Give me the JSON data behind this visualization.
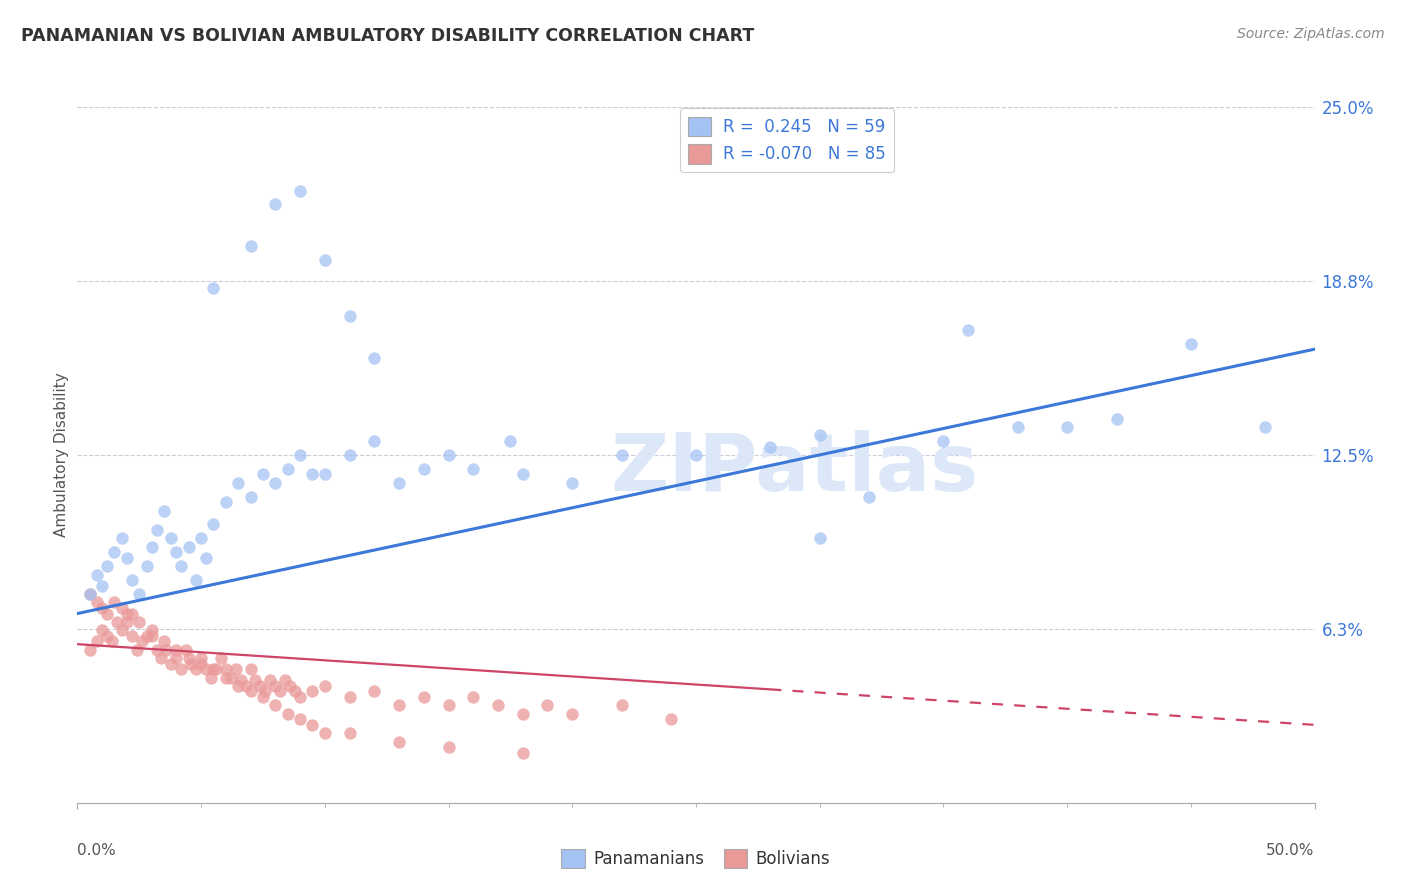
{
  "title": "PANAMANIAN VS BOLIVIAN AMBULATORY DISABILITY CORRELATION CHART",
  "source": "Source: ZipAtlas.com",
  "ylabel": "Ambulatory Disability",
  "xlim": [
    0.0,
    0.5
  ],
  "ylim": [
    0.0,
    0.25
  ],
  "yticks": [
    0.0,
    0.0625,
    0.125,
    0.1875,
    0.25
  ],
  "ytick_labels": [
    "",
    "6.3%",
    "12.5%",
    "18.8%",
    "25.0%"
  ],
  "watermark": "ZIPatlas",
  "blue_color": "#a4c2f4",
  "pink_color": "#ea9999",
  "trend_blue": "#3c78d8",
  "trend_pink": "#cc4466",
  "blue_trend_x0": 0.0,
  "blue_trend_y0": 0.068,
  "blue_trend_x1": 0.5,
  "blue_trend_y1": 0.163,
  "pink_trend_x0": 0.0,
  "pink_trend_y0": 0.057,
  "pink_trend_x1": 0.5,
  "pink_trend_y1": 0.028,
  "pan_x": [
    0.005,
    0.008,
    0.01,
    0.012,
    0.015,
    0.018,
    0.02,
    0.022,
    0.025,
    0.028,
    0.03,
    0.032,
    0.035,
    0.038,
    0.04,
    0.042,
    0.045,
    0.048,
    0.05,
    0.052,
    0.055,
    0.06,
    0.065,
    0.07,
    0.075,
    0.08,
    0.085,
    0.09,
    0.095,
    0.1,
    0.11,
    0.12,
    0.13,
    0.14,
    0.15,
    0.16,
    0.175,
    0.18,
    0.2,
    0.22,
    0.25,
    0.28,
    0.3,
    0.35,
    0.38,
    0.4,
    0.42,
    0.45,
    0.48,
    0.3,
    0.32,
    0.36,
    0.055,
    0.07,
    0.08,
    0.09,
    0.1,
    0.11,
    0.12
  ],
  "pan_y": [
    0.075,
    0.082,
    0.078,
    0.085,
    0.09,
    0.095,
    0.088,
    0.08,
    0.075,
    0.085,
    0.092,
    0.098,
    0.105,
    0.095,
    0.09,
    0.085,
    0.092,
    0.08,
    0.095,
    0.088,
    0.1,
    0.108,
    0.115,
    0.11,
    0.118,
    0.115,
    0.12,
    0.125,
    0.118,
    0.118,
    0.125,
    0.13,
    0.115,
    0.12,
    0.125,
    0.12,
    0.13,
    0.118,
    0.115,
    0.125,
    0.125,
    0.128,
    0.132,
    0.13,
    0.135,
    0.135,
    0.138,
    0.165,
    0.135,
    0.095,
    0.11,
    0.17,
    0.185,
    0.2,
    0.215,
    0.22,
    0.195,
    0.175,
    0.16
  ],
  "bol_x": [
    0.005,
    0.008,
    0.01,
    0.012,
    0.014,
    0.016,
    0.018,
    0.02,
    0.022,
    0.024,
    0.026,
    0.028,
    0.03,
    0.032,
    0.034,
    0.036,
    0.038,
    0.04,
    0.042,
    0.044,
    0.046,
    0.048,
    0.05,
    0.052,
    0.054,
    0.056,
    0.058,
    0.06,
    0.062,
    0.064,
    0.066,
    0.068,
    0.07,
    0.072,
    0.074,
    0.076,
    0.078,
    0.08,
    0.082,
    0.084,
    0.086,
    0.088,
    0.09,
    0.095,
    0.1,
    0.11,
    0.12,
    0.13,
    0.14,
    0.15,
    0.16,
    0.17,
    0.18,
    0.19,
    0.2,
    0.22,
    0.24,
    0.005,
    0.008,
    0.01,
    0.012,
    0.015,
    0.018,
    0.02,
    0.022,
    0.025,
    0.03,
    0.035,
    0.04,
    0.045,
    0.05,
    0.055,
    0.06,
    0.065,
    0.07,
    0.075,
    0.08,
    0.085,
    0.09,
    0.095,
    0.1,
    0.11,
    0.13,
    0.15,
    0.18
  ],
  "bol_y": [
    0.055,
    0.058,
    0.062,
    0.06,
    0.058,
    0.065,
    0.062,
    0.068,
    0.06,
    0.055,
    0.058,
    0.06,
    0.062,
    0.055,
    0.052,
    0.055,
    0.05,
    0.052,
    0.048,
    0.055,
    0.05,
    0.048,
    0.052,
    0.048,
    0.045,
    0.048,
    0.052,
    0.048,
    0.045,
    0.048,
    0.044,
    0.042,
    0.048,
    0.044,
    0.042,
    0.04,
    0.044,
    0.042,
    0.04,
    0.044,
    0.042,
    0.04,
    0.038,
    0.04,
    0.042,
    0.038,
    0.04,
    0.035,
    0.038,
    0.035,
    0.038,
    0.035,
    0.032,
    0.035,
    0.032,
    0.035,
    0.03,
    0.075,
    0.072,
    0.07,
    0.068,
    0.072,
    0.07,
    0.065,
    0.068,
    0.065,
    0.06,
    0.058,
    0.055,
    0.052,
    0.05,
    0.048,
    0.045,
    0.042,
    0.04,
    0.038,
    0.035,
    0.032,
    0.03,
    0.028,
    0.025,
    0.025,
    0.022,
    0.02,
    0.018
  ]
}
